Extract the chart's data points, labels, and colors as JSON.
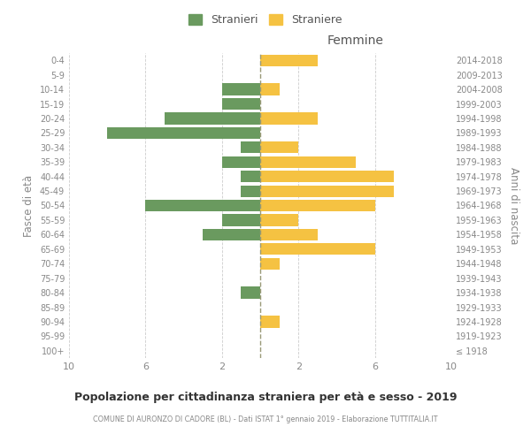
{
  "age_groups": [
    "100+",
    "95-99",
    "90-94",
    "85-89",
    "80-84",
    "75-79",
    "70-74",
    "65-69",
    "60-64",
    "55-59",
    "50-54",
    "45-49",
    "40-44",
    "35-39",
    "30-34",
    "25-29",
    "20-24",
    "15-19",
    "10-14",
    "5-9",
    "0-4"
  ],
  "birth_years": [
    "≤ 1918",
    "1919-1923",
    "1924-1928",
    "1929-1933",
    "1934-1938",
    "1939-1943",
    "1944-1948",
    "1949-1953",
    "1954-1958",
    "1959-1963",
    "1964-1968",
    "1969-1973",
    "1974-1978",
    "1979-1983",
    "1984-1988",
    "1989-1993",
    "1994-1998",
    "1999-2003",
    "2004-2008",
    "2009-2013",
    "2014-2018"
  ],
  "males": [
    0,
    0,
    0,
    0,
    1,
    0,
    0,
    0,
    3,
    2,
    6,
    1,
    1,
    2,
    1,
    8,
    5,
    2,
    2,
    0,
    0
  ],
  "females": [
    0,
    0,
    1,
    0,
    0,
    0,
    1,
    6,
    3,
    2,
    6,
    7,
    7,
    5,
    2,
    0,
    3,
    0,
    1,
    0,
    3
  ],
  "male_color": "#6a9a5f",
  "female_color": "#f5c242",
  "background_color": "#ffffff",
  "grid_color": "#cccccc",
  "title": "Popolazione per cittadinanza straniera per età e sesso - 2019",
  "subtitle": "COMUNE DI AURONZO DI CADORE (BL) - Dati ISTAT 1° gennaio 2019 - Elaborazione TUTTITALIA.IT",
  "xlabel_right": "Femmine",
  "ylabel_left": "Fasce di età",
  "ylabel_right": "Anni di nascita",
  "legend_stranieri": "Stranieri",
  "legend_straniere": "Straniere",
  "xlim": 10,
  "bar_height": 0.8
}
